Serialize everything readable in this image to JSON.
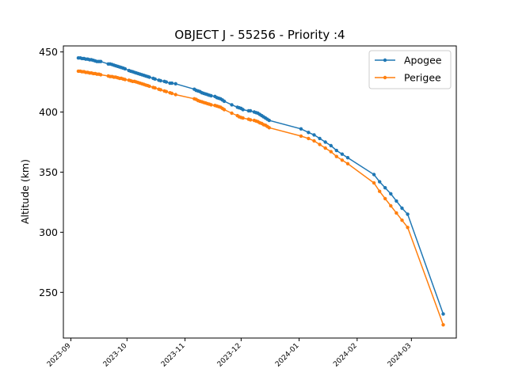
{
  "chart_data": {
    "type": "line",
    "title": "OBJECT J - 55256 - Priority :4",
    "xlabel": "",
    "ylabel": "Altitude (km)",
    "x_axis_type": "date",
    "xlim": [
      "2023-08-28",
      "2024-03-25"
    ],
    "ylim": [
      212,
      455
    ],
    "x_ticks": [
      "2023-09-01",
      "2023-10-01",
      "2023-11-01",
      "2023-12-01",
      "2024-01-01",
      "2024-02-01",
      "2024-03-01"
    ],
    "x_tick_labels": [
      "2023-09",
      "2023-10",
      "2023-11",
      "2023-12",
      "2024-01",
      "2024-02",
      "2024-03"
    ],
    "y_ticks": [
      250,
      300,
      350,
      400,
      450
    ],
    "grid": false,
    "legend_position": "top-right",
    "series": [
      {
        "name": "Apogee",
        "color": "#1f77b4",
        "points": [
          [
            "2023-09-05",
            445
          ],
          [
            "2023-09-06",
            445
          ],
          [
            "2023-09-07",
            444.5
          ],
          [
            "2023-09-08",
            444.5
          ],
          [
            "2023-09-09",
            444
          ],
          [
            "2023-09-10",
            444
          ],
          [
            "2023-09-11",
            443.5
          ],
          [
            "2023-09-12",
            443.5
          ],
          [
            "2023-09-13",
            443
          ],
          [
            "2023-09-14",
            442.5
          ],
          [
            "2023-09-15",
            442
          ],
          [
            "2023-09-16",
            442
          ],
          [
            "2023-09-17",
            442
          ],
          [
            "2023-09-21",
            440
          ],
          [
            "2023-09-22",
            440
          ],
          [
            "2023-09-23",
            439.5
          ],
          [
            "2023-09-24",
            439
          ],
          [
            "2023-09-25",
            438.5
          ],
          [
            "2023-09-26",
            438
          ],
          [
            "2023-09-27",
            437.5
          ],
          [
            "2023-09-28",
            437
          ],
          [
            "2023-09-29",
            436.5
          ],
          [
            "2023-09-30",
            436
          ],
          [
            "2023-10-02",
            434.5
          ],
          [
            "2023-10-03",
            434
          ],
          [
            "2023-10-04",
            433.5
          ],
          [
            "2023-10-05",
            433
          ],
          [
            "2023-10-06",
            432.5
          ],
          [
            "2023-10-07",
            432
          ],
          [
            "2023-10-08",
            431.5
          ],
          [
            "2023-10-09",
            431
          ],
          [
            "2023-10-10",
            430.5
          ],
          [
            "2023-10-11",
            430
          ],
          [
            "2023-10-12",
            429.5
          ],
          [
            "2023-10-13",
            429
          ],
          [
            "2023-10-15",
            428
          ],
          [
            "2023-10-16",
            427.5
          ],
          [
            "2023-10-18",
            426.5
          ],
          [
            "2023-10-19",
            426
          ],
          [
            "2023-10-21",
            425.5
          ],
          [
            "2023-10-22",
            425
          ],
          [
            "2023-10-24",
            424
          ],
          [
            "2023-10-25",
            424
          ],
          [
            "2023-10-27",
            423.5
          ],
          [
            "2023-11-06",
            419
          ],
          [
            "2023-11-07",
            418
          ],
          [
            "2023-11-08",
            417.5
          ],
          [
            "2023-11-09",
            417
          ],
          [
            "2023-11-10",
            416
          ],
          [
            "2023-11-11",
            415.5
          ],
          [
            "2023-11-12",
            415
          ],
          [
            "2023-11-13",
            414.5
          ],
          [
            "2023-11-14",
            414
          ],
          [
            "2023-11-15",
            413.5
          ],
          [
            "2023-11-17",
            413
          ],
          [
            "2023-11-18",
            412
          ],
          [
            "2023-11-19",
            411.5
          ],
          [
            "2023-11-20",
            411
          ],
          [
            "2023-11-21",
            410
          ],
          [
            "2023-11-22",
            409
          ],
          [
            "2023-11-26",
            406
          ],
          [
            "2023-11-29",
            404
          ],
          [
            "2023-11-30",
            403.5
          ],
          [
            "2023-12-01",
            403
          ],
          [
            "2023-12-02",
            402
          ],
          [
            "2023-12-05",
            401
          ],
          [
            "2023-12-06",
            401
          ],
          [
            "2023-12-08",
            400
          ],
          [
            "2023-12-09",
            399.5
          ],
          [
            "2023-12-10",
            399
          ],
          [
            "2023-12-11",
            398
          ],
          [
            "2023-12-12",
            397
          ],
          [
            "2023-12-13",
            396
          ],
          [
            "2023-12-14",
            395
          ],
          [
            "2023-12-15",
            394
          ],
          [
            "2023-12-16",
            393
          ],
          [
            "2024-01-02",
            386
          ],
          [
            "2024-01-06",
            383
          ],
          [
            "2024-01-09",
            381
          ],
          [
            "2024-01-12",
            378
          ],
          [
            "2024-01-15",
            375
          ],
          [
            "2024-01-18",
            372
          ],
          [
            "2024-01-21",
            368
          ],
          [
            "2024-01-24",
            365
          ],
          [
            "2024-01-27",
            362
          ],
          [
            "2024-02-10",
            348
          ],
          [
            "2024-02-13",
            342
          ],
          [
            "2024-02-16",
            337
          ],
          [
            "2024-02-19",
            332
          ],
          [
            "2024-02-22",
            326
          ],
          [
            "2024-02-25",
            320
          ],
          [
            "2024-02-28",
            315
          ],
          [
            "2024-03-18",
            232
          ]
        ]
      },
      {
        "name": "Perigee",
        "color": "#ff7f0e",
        "points": [
          [
            "2023-09-05",
            434
          ],
          [
            "2023-09-06",
            434
          ],
          [
            "2023-09-07",
            433.5
          ],
          [
            "2023-09-08",
            433.5
          ],
          [
            "2023-09-09",
            433
          ],
          [
            "2023-09-10",
            433
          ],
          [
            "2023-09-11",
            432.5
          ],
          [
            "2023-09-12",
            432.5
          ],
          [
            "2023-09-13",
            432
          ],
          [
            "2023-09-14",
            432
          ],
          [
            "2023-09-15",
            431.5
          ],
          [
            "2023-09-16",
            431.5
          ],
          [
            "2023-09-17",
            431
          ],
          [
            "2023-09-21",
            430
          ],
          [
            "2023-09-22",
            429.5
          ],
          [
            "2023-09-23",
            429.5
          ],
          [
            "2023-09-24",
            429
          ],
          [
            "2023-09-25",
            429
          ],
          [
            "2023-09-26",
            428.5
          ],
          [
            "2023-09-27",
            428
          ],
          [
            "2023-09-28",
            428
          ],
          [
            "2023-09-29",
            427.5
          ],
          [
            "2023-09-30",
            427
          ],
          [
            "2023-10-02",
            426.5
          ],
          [
            "2023-10-03",
            426
          ],
          [
            "2023-10-04",
            425.5
          ],
          [
            "2023-10-05",
            425.5
          ],
          [
            "2023-10-06",
            425
          ],
          [
            "2023-10-07",
            424.5
          ],
          [
            "2023-10-08",
            424
          ],
          [
            "2023-10-09",
            423.5
          ],
          [
            "2023-10-10",
            423
          ],
          [
            "2023-10-11",
            422.5
          ],
          [
            "2023-10-12",
            422
          ],
          [
            "2023-10-13",
            421.5
          ],
          [
            "2023-10-15",
            420.5
          ],
          [
            "2023-10-16",
            420
          ],
          [
            "2023-10-18",
            419
          ],
          [
            "2023-10-19",
            418.5
          ],
          [
            "2023-10-21",
            417.5
          ],
          [
            "2023-10-22",
            417
          ],
          [
            "2023-10-24",
            416
          ],
          [
            "2023-10-25",
            415.5
          ],
          [
            "2023-10-27",
            414.5
          ],
          [
            "2023-11-06",
            411
          ],
          [
            "2023-11-07",
            410.5
          ],
          [
            "2023-11-08",
            409.5
          ],
          [
            "2023-11-09",
            409
          ],
          [
            "2023-11-10",
            408.5
          ],
          [
            "2023-11-11",
            408
          ],
          [
            "2023-11-12",
            407.5
          ],
          [
            "2023-11-13",
            407
          ],
          [
            "2023-11-14",
            406.5
          ],
          [
            "2023-11-15",
            406
          ],
          [
            "2023-11-17",
            405.5
          ],
          [
            "2023-11-18",
            405
          ],
          [
            "2023-11-19",
            404.5
          ],
          [
            "2023-11-20",
            404
          ],
          [
            "2023-11-21",
            403
          ],
          [
            "2023-11-22",
            402
          ],
          [
            "2023-11-26",
            399
          ],
          [
            "2023-11-29",
            397
          ],
          [
            "2023-11-30",
            396
          ],
          [
            "2023-12-01",
            395.5
          ],
          [
            "2023-12-02",
            395
          ],
          [
            "2023-12-05",
            394
          ],
          [
            "2023-12-06",
            393.5
          ],
          [
            "2023-12-08",
            393
          ],
          [
            "2023-12-09",
            392.5
          ],
          [
            "2023-12-10",
            392
          ],
          [
            "2023-12-11",
            391
          ],
          [
            "2023-12-12",
            390.5
          ],
          [
            "2023-12-13",
            389.5
          ],
          [
            "2023-12-14",
            389
          ],
          [
            "2023-12-15",
            388
          ],
          [
            "2023-12-16",
            387
          ],
          [
            "2024-01-02",
            380
          ],
          [
            "2024-01-06",
            378
          ],
          [
            "2024-01-09",
            376
          ],
          [
            "2024-01-12",
            373
          ],
          [
            "2024-01-15",
            370
          ],
          [
            "2024-01-18",
            367
          ],
          [
            "2024-01-21",
            363
          ],
          [
            "2024-01-24",
            360
          ],
          [
            "2024-01-27",
            357
          ],
          [
            "2024-02-10",
            341
          ],
          [
            "2024-02-13",
            334
          ],
          [
            "2024-02-16",
            328
          ],
          [
            "2024-02-19",
            322
          ],
          [
            "2024-02-22",
            316
          ],
          [
            "2024-02-25",
            310
          ],
          [
            "2024-02-28",
            304
          ],
          [
            "2024-03-18",
            223
          ]
        ]
      }
    ]
  }
}
